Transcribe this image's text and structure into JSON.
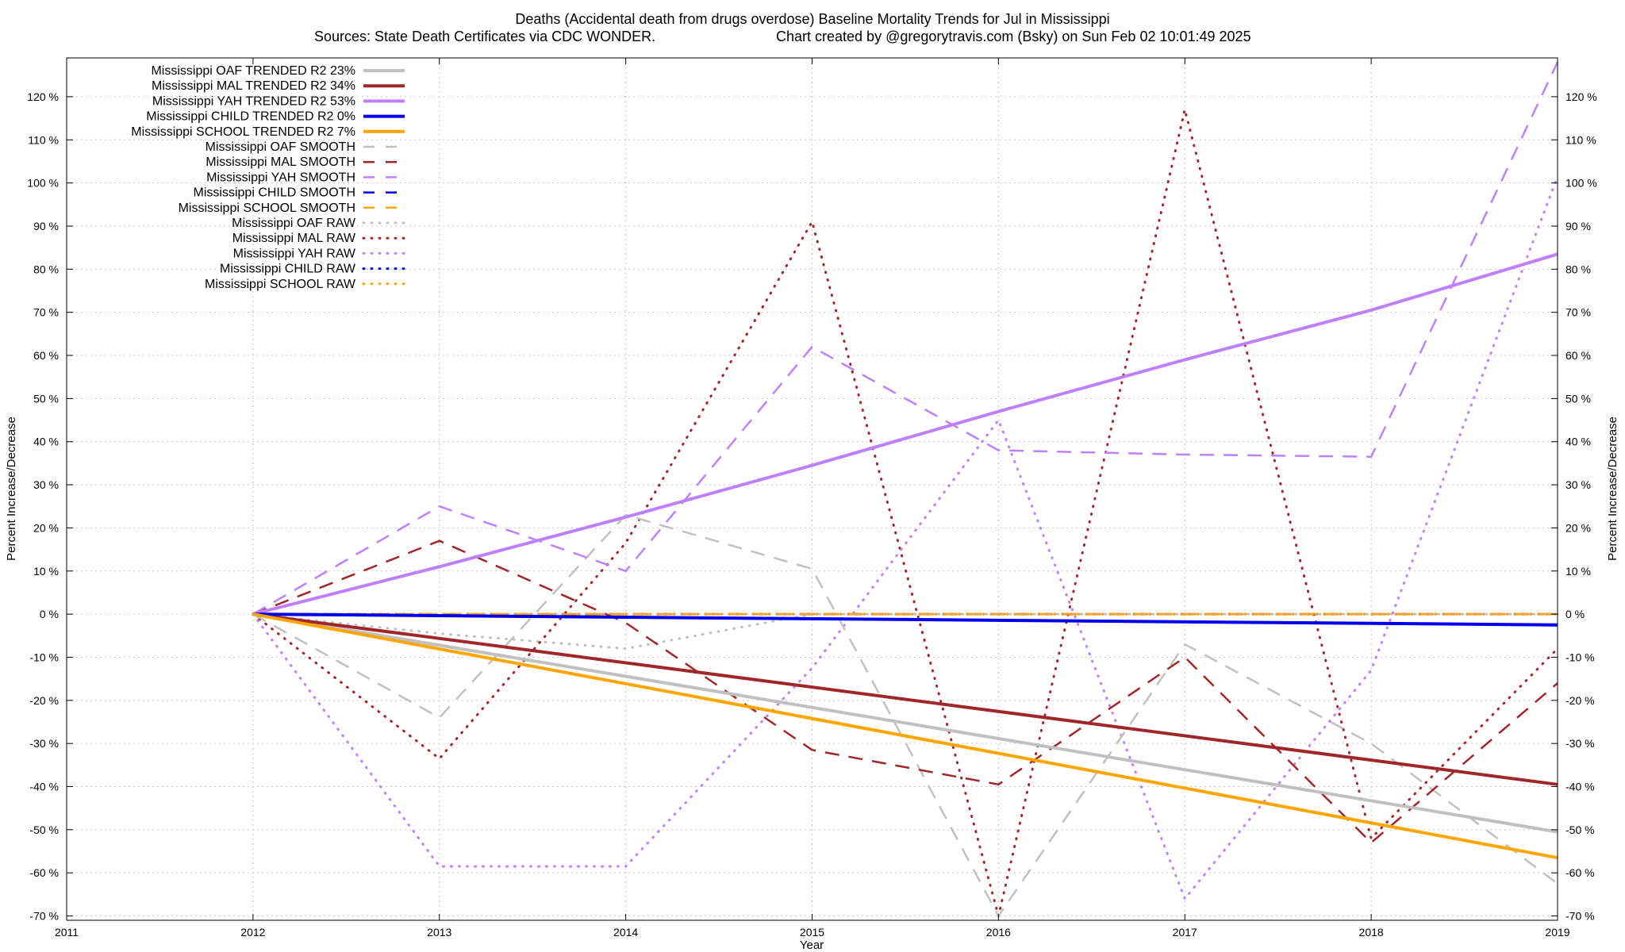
{
  "chart_data": {
    "type": "line",
    "title": "Deaths (Accidental death from drugs overdose)  Baseline Mortality Trends for Jul in Mississippi",
    "subtitle_left": "Sources: State Death Certificates via CDC WONDER.",
    "subtitle_right": "Chart created by @gregorytravis.com (Bsky) on Sun Feb 02 10:01:49 2025",
    "xlabel": "Year",
    "ylabel": "Percent Increase/Decrease",
    "ylabel_right": "Percent Increase/Decrease",
    "xlim": [
      2011,
      2019
    ],
    "ylim": [
      -71,
      129
    ],
    "x_ticks": [
      2011,
      2012,
      2013,
      2014,
      2015,
      2016,
      2017,
      2018,
      2019
    ],
    "y_ticks": [
      -70,
      -60,
      -50,
      -40,
      -30,
      -20,
      -10,
      0,
      10,
      20,
      30,
      40,
      50,
      60,
      70,
      80,
      90,
      100,
      110,
      120
    ],
    "y_tick_suffix": " %",
    "grid": true,
    "legend_position": "top-left",
    "series": [
      {
        "name": "Mississippi OAF TRENDED R2  23%",
        "style": "solid",
        "color": "#c0c0c0",
        "width": 4,
        "x": [
          2012,
          2019
        ],
        "y": [
          0,
          -50.5
        ]
      },
      {
        "name": "Mississippi MAL TRENDED R2  34%",
        "style": "solid",
        "color": "#a0262a",
        "width": 4,
        "x": [
          2012,
          2019
        ],
        "y": [
          0,
          -39.5
        ]
      },
      {
        "name": "Mississippi YAH TRENDED R2  53%",
        "style": "solid",
        "color": "#bf80ff",
        "width": 4,
        "x": [
          2012,
          2013,
          2014,
          2015,
          2016,
          2017,
          2018,
          2019
        ],
        "y": [
          0,
          11,
          22.5,
          34.5,
          47,
          59,
          70.5,
          83.5
        ]
      },
      {
        "name": "Mississippi CHILD TRENDED R2   0%",
        "style": "solid",
        "color": "#0000ee",
        "width": 4,
        "x": [
          2012,
          2019
        ],
        "y": [
          0,
          -2.5
        ]
      },
      {
        "name": "Mississippi SCHOOL TRENDED R2   7%",
        "style": "solid",
        "color": "#ffa500",
        "width": 4,
        "x": [
          2012,
          2019
        ],
        "y": [
          0,
          -56.5
        ]
      },
      {
        "name": "Mississippi OAF SMOOTH",
        "style": "dash",
        "color": "#c0c0c0",
        "width": 2.5,
        "x": [
          2012,
          2013,
          2014,
          2015,
          2016,
          2017,
          2018,
          2019
        ],
        "y": [
          0,
          -24,
          23,
          10.5,
          -70,
          -7,
          -30,
          -62.5
        ]
      },
      {
        "name": "Mississippi MAL SMOOTH",
        "style": "dash",
        "color": "#a0262a",
        "width": 2.5,
        "x": [
          2012,
          2013,
          2014,
          2015,
          2016,
          2017,
          2018,
          2019
        ],
        "y": [
          0,
          17,
          -2,
          -31.5,
          -39.5,
          -10,
          -53,
          -16
        ]
      },
      {
        "name": "Mississippi YAH SMOOTH",
        "style": "dash",
        "color": "#bf80ff",
        "width": 2.5,
        "x": [
          2012,
          2013,
          2014,
          2015,
          2016,
          2017,
          2018,
          2019
        ],
        "y": [
          0,
          25,
          10,
          62,
          38,
          37,
          36.5,
          128
        ]
      },
      {
        "name": "Mississippi CHILD SMOOTH",
        "style": "dash",
        "color": "#0000ee",
        "width": 2.5,
        "x": [
          2012,
          2019
        ],
        "y": [
          0,
          0
        ]
      },
      {
        "name": "Mississippi SCHOOL SMOOTH",
        "style": "dash",
        "color": "#ffa500",
        "width": 2.5,
        "x": [
          2012,
          2019
        ],
        "y": [
          0,
          0
        ]
      },
      {
        "name": "Mississippi OAF RAW",
        "style": "dot",
        "color": "#c0c0c0",
        "width": 3,
        "x": [
          2012,
          2013,
          2014,
          2015,
          2016,
          2017,
          2018,
          2019
        ],
        "y": [
          0,
          -4.5,
          -8,
          0,
          0,
          0,
          0,
          0
        ]
      },
      {
        "name": "Mississippi MAL RAW",
        "style": "dot",
        "color": "#a0262a",
        "width": 3,
        "x": [
          2012,
          2013,
          2014,
          2015,
          2016,
          2017,
          2018,
          2019
        ],
        "y": [
          0,
          -33.5,
          16.5,
          91,
          -70,
          117,
          -52,
          -8
        ]
      },
      {
        "name": "Mississippi YAH RAW",
        "style": "dot",
        "color": "#bf80ff",
        "width": 3,
        "x": [
          2012,
          2013,
          2014,
          2015,
          2016,
          2017,
          2018,
          2019
        ],
        "y": [
          0,
          -58.5,
          -58.5,
          -12.5,
          45,
          -66,
          -13,
          101.5
        ]
      },
      {
        "name": "Mississippi CHILD RAW",
        "style": "dot",
        "color": "#0000ee",
        "width": 3,
        "x": [
          2012,
          2019
        ],
        "y": [
          0,
          0
        ]
      },
      {
        "name": "Mississippi SCHOOL RAW",
        "style": "dot",
        "color": "#ffa500",
        "width": 3,
        "x": [
          2012,
          2019
        ],
        "y": [
          0,
          0
        ]
      }
    ]
  }
}
